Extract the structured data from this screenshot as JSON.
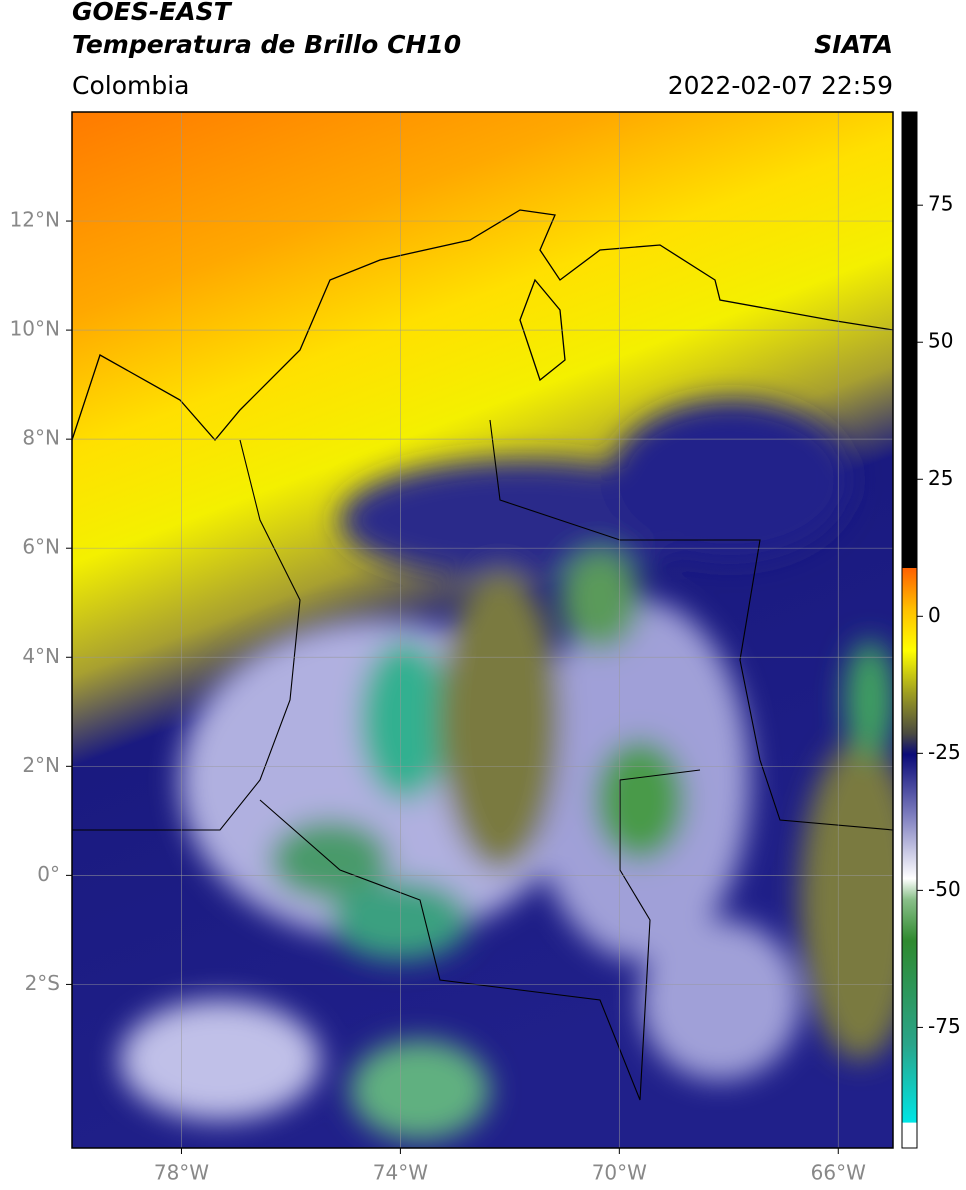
{
  "header": {
    "title": "GOES-EAST",
    "subtitle": "Temperatura de Brillo CH10",
    "source": "SIATA",
    "region": "Colombia",
    "datetime": "2022-02-07 22:59"
  },
  "map": {
    "xlim": [
      -80,
      -65
    ],
    "ylim": [
      -5,
      14
    ],
    "xticks": [
      {
        "value": -78,
        "label": "78°W"
      },
      {
        "value": -74,
        "label": "74°W"
      },
      {
        "value": -70,
        "label": "70°W"
      },
      {
        "value": -66,
        "label": "66°W"
      }
    ],
    "yticks": [
      {
        "value": 12,
        "label": "12°N"
      },
      {
        "value": 10,
        "label": "10°N"
      },
      {
        "value": 8,
        "label": "8°N"
      },
      {
        "value": 6,
        "label": "6°N"
      },
      {
        "value": 4,
        "label": "4°N"
      },
      {
        "value": 2,
        "label": "2°N"
      },
      {
        "value": 0,
        "label": "0°"
      },
      {
        "value": -2,
        "label": "2°S"
      }
    ],
    "grid": true
  },
  "colorbar": {
    "clim": [
      -97,
      92
    ],
    "ticks": [
      75,
      50,
      25,
      0,
      -25,
      -50,
      -75
    ]
  }
}
